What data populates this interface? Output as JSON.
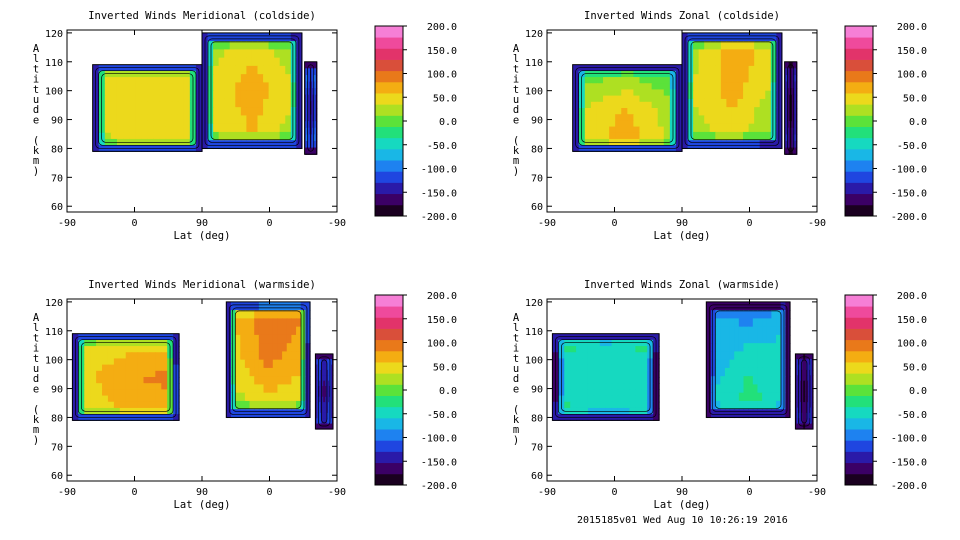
{
  "colorbar": {
    "ticks": [
      "200.0",
      "150.0",
      "100.0",
      "50.0",
      "0.0",
      "-50.0",
      "-100.0",
      "-150.0",
      "-200.0"
    ],
    "colors": [
      "#1a0020",
      "#3b0066",
      "#2a1aa8",
      "#1f46e0",
      "#1e82f0",
      "#19b7e6",
      "#16d9c0",
      "#22e07a",
      "#5be23a",
      "#aee022",
      "#ecd91c",
      "#f4ad12",
      "#e9791a",
      "#d94f3a",
      "#e2336a",
      "#ef4a9c",
      "#f67fd6"
    ]
  },
  "chart_data": [
    {
      "type": "heatmap",
      "title": "Inverted Winds Meridional (coldside)",
      "xlabel": "Lat (deg)",
      "ylabel": "Altitude (km)",
      "xticks": [
        "-90",
        "0",
        "90",
        "0",
        "-90"
      ],
      "yticks": [
        "60",
        "70",
        "80",
        "90",
        "100",
        "110",
        "120"
      ],
      "ylim": [
        58,
        121
      ],
      "colorbar_range": [
        -200,
        200
      ],
      "segments": [
        {
          "x": [
            -90,
            -10,
            70
          ],
          "alt_low": 79,
          "alt_high": 109,
          "grid": [
            [
              20,
              50,
              35
            ],
            [
              40,
              60,
              45
            ],
            [
              30,
              55,
              40
            ]
          ]
        },
        {
          "x": [
            90,
            0,
            -60
          ],
          "alt_low": 80,
          "alt_high": 120,
          "grid": [
            [
              20,
              55,
              10
            ],
            [
              35,
              75,
              30
            ],
            [
              15,
              45,
              5
            ]
          ]
        },
        {
          "x": [
            -90,
            -90,
            -90
          ],
          "alt_low": 78,
          "alt_high": 110,
          "grid": [
            [
              -80,
              -120,
              -80
            ],
            [
              -100,
              -160,
              -100
            ],
            [
              -80,
              -120,
              -80
            ]
          ]
        }
      ]
    },
    {
      "type": "heatmap",
      "title": "Inverted Winds Zonal (coldside)",
      "xlabel": "Lat (deg)",
      "ylabel": "Altitude (km)",
      "xticks": [
        "-90",
        "0",
        "90",
        "0",
        "-90"
      ],
      "yticks": [
        "60",
        "70",
        "80",
        "90",
        "100",
        "110",
        "120"
      ],
      "ylim": [
        58,
        121
      ],
      "colorbar_range": [
        -200,
        200
      ],
      "segments": [
        {
          "x": [
            -90,
            -10,
            70
          ],
          "alt_low": 79,
          "alt_high": 109,
          "grid": [
            [
              40,
              80,
              20
            ],
            [
              30,
              60,
              10
            ],
            [
              -20,
              0,
              -30
            ]
          ]
        },
        {
          "x": [
            90,
            0,
            -60
          ],
          "alt_low": 80,
          "alt_high": 120,
          "grid": [
            [
              10,
              40,
              -10
            ],
            [
              30,
              70,
              20
            ],
            [
              0,
              80,
              50
            ]
          ]
        },
        {
          "x": [
            -90,
            -90,
            -90
          ],
          "alt_low": 78,
          "alt_high": 110,
          "grid": [
            [
              -100,
              -160,
              -100
            ],
            [
              -120,
              -200,
              -120
            ],
            [
              -100,
              -160,
              -100
            ]
          ]
        }
      ]
    },
    {
      "type": "heatmap",
      "title": "Inverted Winds Meridional (warmside)",
      "xlabel": "Lat (deg)",
      "ylabel": "Altitude (km)",
      "xticks": [
        "-90",
        "0",
        "90",
        "0",
        "-90"
      ],
      "yticks": [
        "60",
        "70",
        "80",
        "90",
        "100",
        "110",
        "120"
      ],
      "ylim": [
        58,
        121
      ],
      "colorbar_range": [
        -200,
        200
      ],
      "segments": [
        {
          "x": [
            -90,
            -10,
            70
          ],
          "alt_low": 79,
          "alt_high": 109,
          "grid": [
            [
              30,
              60,
              70
            ],
            [
              45,
              80,
              90
            ],
            [
              20,
              40,
              30
            ]
          ]
        },
        {
          "x": [
            90,
            0,
            -60
          ],
          "alt_low": 80,
          "alt_high": 120,
          "grid": [
            [
              10,
              40,
              20
            ],
            [
              40,
              90,
              60
            ],
            [
              50,
              110,
              90
            ]
          ]
        },
        {
          "x": [
            -90,
            -90,
            -90
          ],
          "alt_low": 76,
          "alt_high": 102,
          "grid": [
            [
              -90,
              -130,
              -90
            ],
            [
              -110,
              -170,
              -110
            ],
            [
              -90,
              -130,
              -90
            ]
          ]
        }
      ]
    },
    {
      "type": "heatmap",
      "title": "Inverted Winds Zonal (warmside)",
      "xlabel": "Lat (deg)",
      "ylabel": "Altitude (km)",
      "xticks": [
        "-90",
        "0",
        "90",
        "0",
        "-90"
      ],
      "yticks": [
        "60",
        "70",
        "80",
        "90",
        "100",
        "110",
        "120"
      ],
      "ylim": [
        58,
        121
      ],
      "colorbar_range": [
        -200,
        200
      ],
      "segments": [
        {
          "x": [
            -90,
            -10,
            70
          ],
          "alt_low": 79,
          "alt_high": 109,
          "grid": [
            [
              -20,
              -50,
              -30
            ],
            [
              -40,
              -60,
              -40
            ],
            [
              -20,
              -40,
              -20
            ]
          ]
        },
        {
          "x": [
            90,
            0,
            -60
          ],
          "alt_low": 80,
          "alt_high": 120,
          "grid": [
            [
              -40,
              -20,
              -50
            ],
            [
              -90,
              -40,
              -60
            ],
            [
              -60,
              -110,
              -50
            ]
          ]
        },
        {
          "x": [
            -90,
            -90,
            -90
          ],
          "alt_low": 76,
          "alt_high": 102,
          "grid": [
            [
              -100,
              -150,
              -100
            ],
            [
              -120,
              -190,
              -120
            ],
            [
              -100,
              -150,
              -100
            ]
          ]
        }
      ]
    }
  ],
  "footer": "2015185v01 Wed Aug 10 10:26:19 2016"
}
